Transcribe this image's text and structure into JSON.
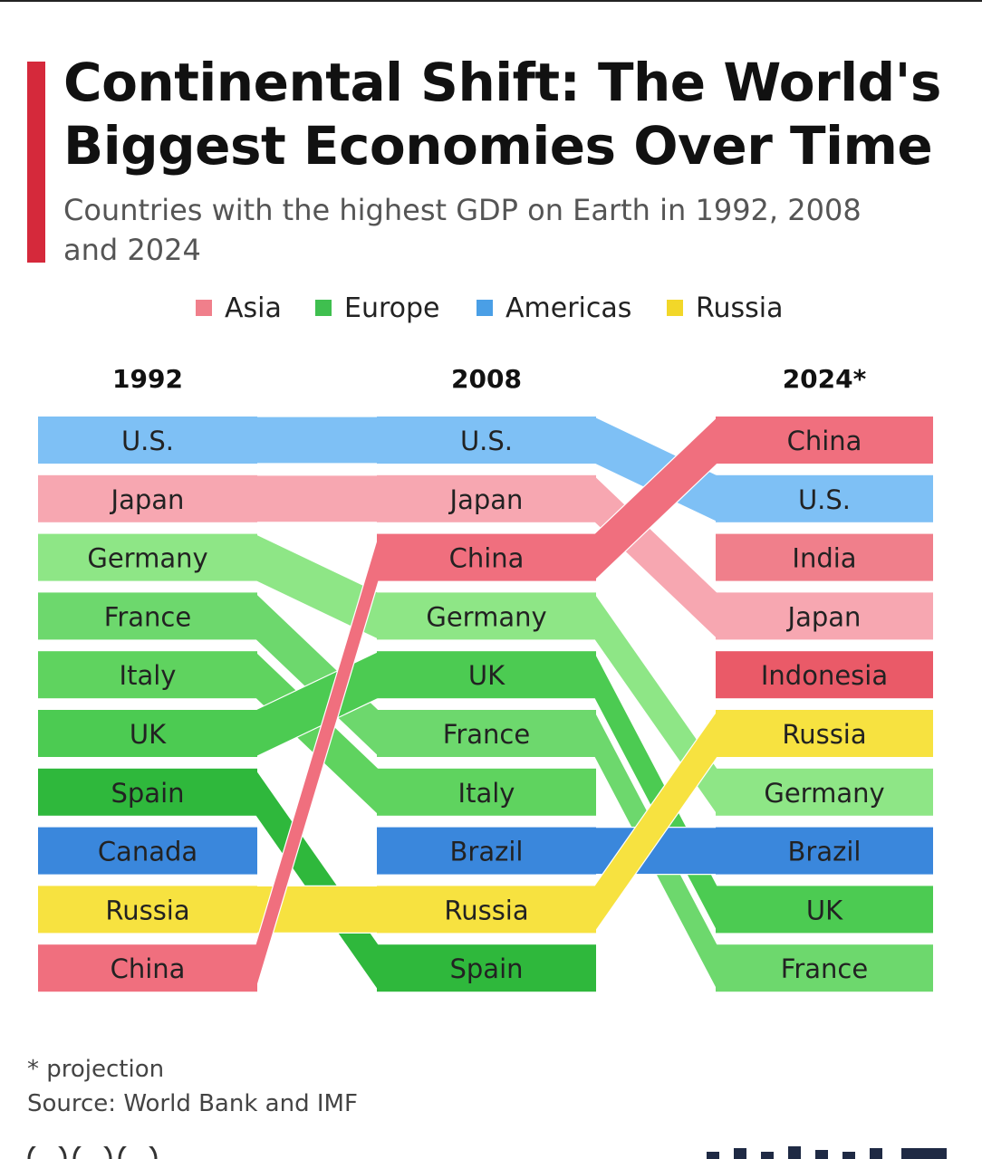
{
  "header": {
    "title": "Continental Shift: The World's Biggest Economies Over Time",
    "subtitle": "Countries with the highest GDP on Earth in 1992, 2008 and 2024"
  },
  "legend": [
    {
      "label": "Asia",
      "color": "#f07f8b"
    },
    {
      "label": "Europe",
      "color": "#3fbf4f"
    },
    {
      "label": "Americas",
      "color": "#4a9fe6"
    },
    {
      "label": "Russia",
      "color": "#f2d729"
    }
  ],
  "chart_data": {
    "type": "table",
    "columns": [
      "1992",
      "2008",
      "2024*"
    ],
    "rankings": [
      [
        "U.S.",
        "Japan",
        "Germany",
        "France",
        "Italy",
        "UK",
        "Spain",
        "Canada",
        "Russia",
        "China"
      ],
      [
        "U.S.",
        "Japan",
        "China",
        "Germany",
        "UK",
        "France",
        "Italy",
        "Brazil",
        "Russia",
        "Spain"
      ],
      [
        "China",
        "U.S.",
        "India",
        "Japan",
        "Indonesia",
        "Russia",
        "Germany",
        "Brazil",
        "UK",
        "France"
      ]
    ],
    "colors": {
      "U.S.": "#7ec0f5",
      "Japan": "#f7a7b1",
      "China": "#f06f7e",
      "India": "#f07f8b",
      "Indonesia": "#ea5a68",
      "Germany": "#8ee686",
      "France": "#6dd86d",
      "Italy": "#5fd35f",
      "UK": "#4ccb52",
      "Spain": "#2fb83c",
      "Canada": "#3a87dc",
      "Brazil": "#3a87dc",
      "Russia": "#f7e240"
    }
  },
  "footer": {
    "footnote": "* projection",
    "source": "Source: World Bank and IMF"
  }
}
